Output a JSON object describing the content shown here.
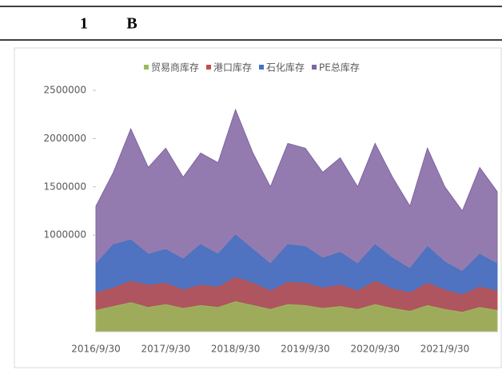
{
  "header": {
    "number": "1",
    "label": "B"
  },
  "chart_data": {
    "type": "area",
    "categories": [
      "2016/9/30",
      null,
      null,
      null,
      "2017/9/30",
      null,
      null,
      null,
      "2018/9/30",
      null,
      null,
      null,
      "2019/9/30",
      null,
      null,
      null,
      "2020/9/30",
      null,
      null,
      null,
      "2021/9/30",
      null,
      null,
      null
    ],
    "series": [
      {
        "name": "PE总库存",
        "color": "#8064a2",
        "values": [
          1300000,
          1650000,
          2100000,
          1700000,
          1900000,
          1600000,
          1850000,
          1750000,
          2300000,
          1850000,
          1500000,
          1950000,
          1900000,
          1650000,
          1800000,
          1500000,
          1950000,
          1600000,
          1300000,
          1900000,
          1500000,
          1250000,
          1700000,
          1450000
        ]
      },
      {
        "name": "石化库存",
        "color": "#4472c4",
        "values": [
          700000,
          900000,
          950000,
          800000,
          850000,
          750000,
          900000,
          800000,
          1000000,
          850000,
          700000,
          900000,
          880000,
          760000,
          820000,
          700000,
          900000,
          760000,
          650000,
          880000,
          720000,
          620000,
          800000,
          700000
        ]
      },
      {
        "name": "港口库存",
        "color": "#c0504d",
        "values": [
          400000,
          450000,
          520000,
          480000,
          500000,
          430000,
          480000,
          460000,
          560000,
          500000,
          420000,
          510000,
          500000,
          450000,
          480000,
          420000,
          520000,
          440000,
          400000,
          500000,
          430000,
          380000,
          460000,
          420000
        ]
      },
      {
        "name": "贸易商库存",
        "color": "#9bbb59",
        "values": [
          220000,
          260000,
          300000,
          250000,
          280000,
          240000,
          270000,
          250000,
          310000,
          270000,
          230000,
          280000,
          270000,
          240000,
          260000,
          230000,
          280000,
          240000,
          210000,
          270000,
          230000,
          200000,
          250000,
          220000
        ]
      }
    ],
    "ylim": [
      0,
      2500000
    ],
    "yticks": [
      1000000,
      1500000,
      2000000,
      2500000
    ],
    "grid": false
  }
}
